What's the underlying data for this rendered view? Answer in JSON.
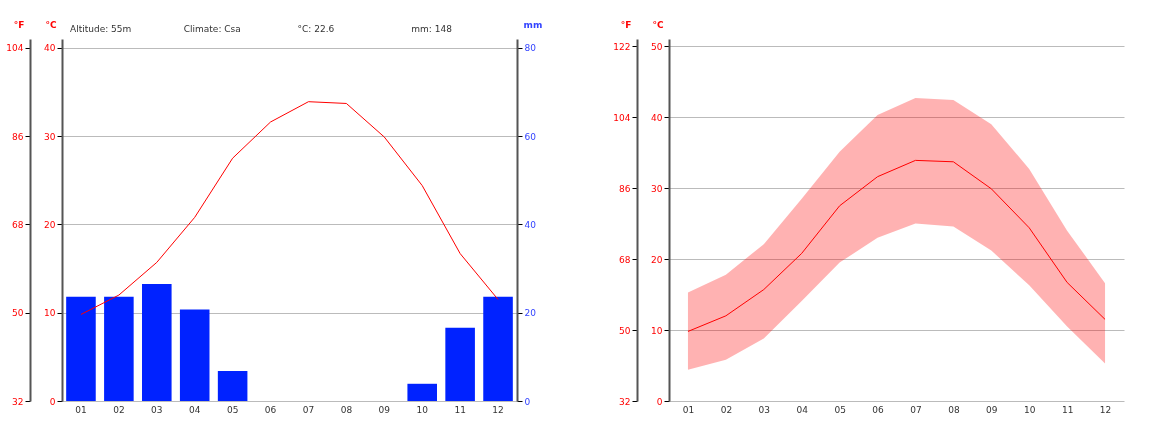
{
  "chart_data": [
    {
      "type": "bar",
      "annotations": [
        "Altitude: 55m",
        "Climate: Csa",
        "°C: 22.6",
        "mm: 148"
      ],
      "ylabel": "°C",
      "y2label": "mm",
      "y3label": "°F",
      "categories": [
        "01",
        "02",
        "03",
        "04",
        "05",
        "06",
        "07",
        "08",
        "09",
        "10",
        "11",
        "12"
      ],
      "series": [
        {
          "axis": "y2",
          "color": "#0022ff",
          "values": [
            23.6,
            23.6,
            26.5,
            20.7,
            6.8,
            0,
            0,
            0,
            0,
            3.9,
            16.6,
            23.6
          ]
        },
        {
          "type": "line",
          "color": "#ff0000",
          "values": [
            9.8,
            12.0,
            15.7,
            20.8,
            27.5,
            31.6,
            33.9,
            33.7,
            29.9,
            24.4,
            16.7,
            11.5
          ]
        }
      ],
      "ylim": [
        0,
        41
      ],
      "yticks": [
        0,
        10,
        20,
        30,
        40
      ],
      "y2lim": [
        0,
        82
      ],
      "y2ticks": [
        0,
        20,
        40,
        60,
        80
      ],
      "y3lim": [
        32,
        105.8
      ],
      "y3ticks": [
        32,
        50,
        68,
        86,
        104
      ],
      "grid": "y"
    },
    {
      "type": "line",
      "ylabel": "°C",
      "y3label": "°F",
      "categories": [
        "01",
        "02",
        "03",
        "04",
        "05",
        "06",
        "07",
        "08",
        "09",
        "10",
        "11",
        "12"
      ],
      "series": [
        {
          "color": "#ff0000",
          "values": [
            9.8,
            12.0,
            15.7,
            20.8,
            27.5,
            31.6,
            33.9,
            33.7,
            29.9,
            24.4,
            16.7,
            11.5
          ],
          "lower": [
            4.4,
            5.8,
            8.8,
            14.1,
            19.5,
            23.0,
            25.0,
            24.6,
            21.2,
            16.3,
            10.5,
            5.3
          ],
          "upper": [
            15.3,
            17.8,
            22.1,
            28.5,
            35.1,
            40.3,
            42.7,
            42.4,
            39.0,
            32.7,
            24.0,
            16.6
          ]
        }
      ],
      "ylim": [
        0,
        51
      ],
      "yticks": [
        0,
        10,
        20,
        30,
        40,
        50
      ],
      "y3lim": [
        32,
        123.8
      ],
      "y3ticks": [
        32,
        50,
        68,
        86,
        104,
        122
      ],
      "grid": "y"
    }
  ]
}
